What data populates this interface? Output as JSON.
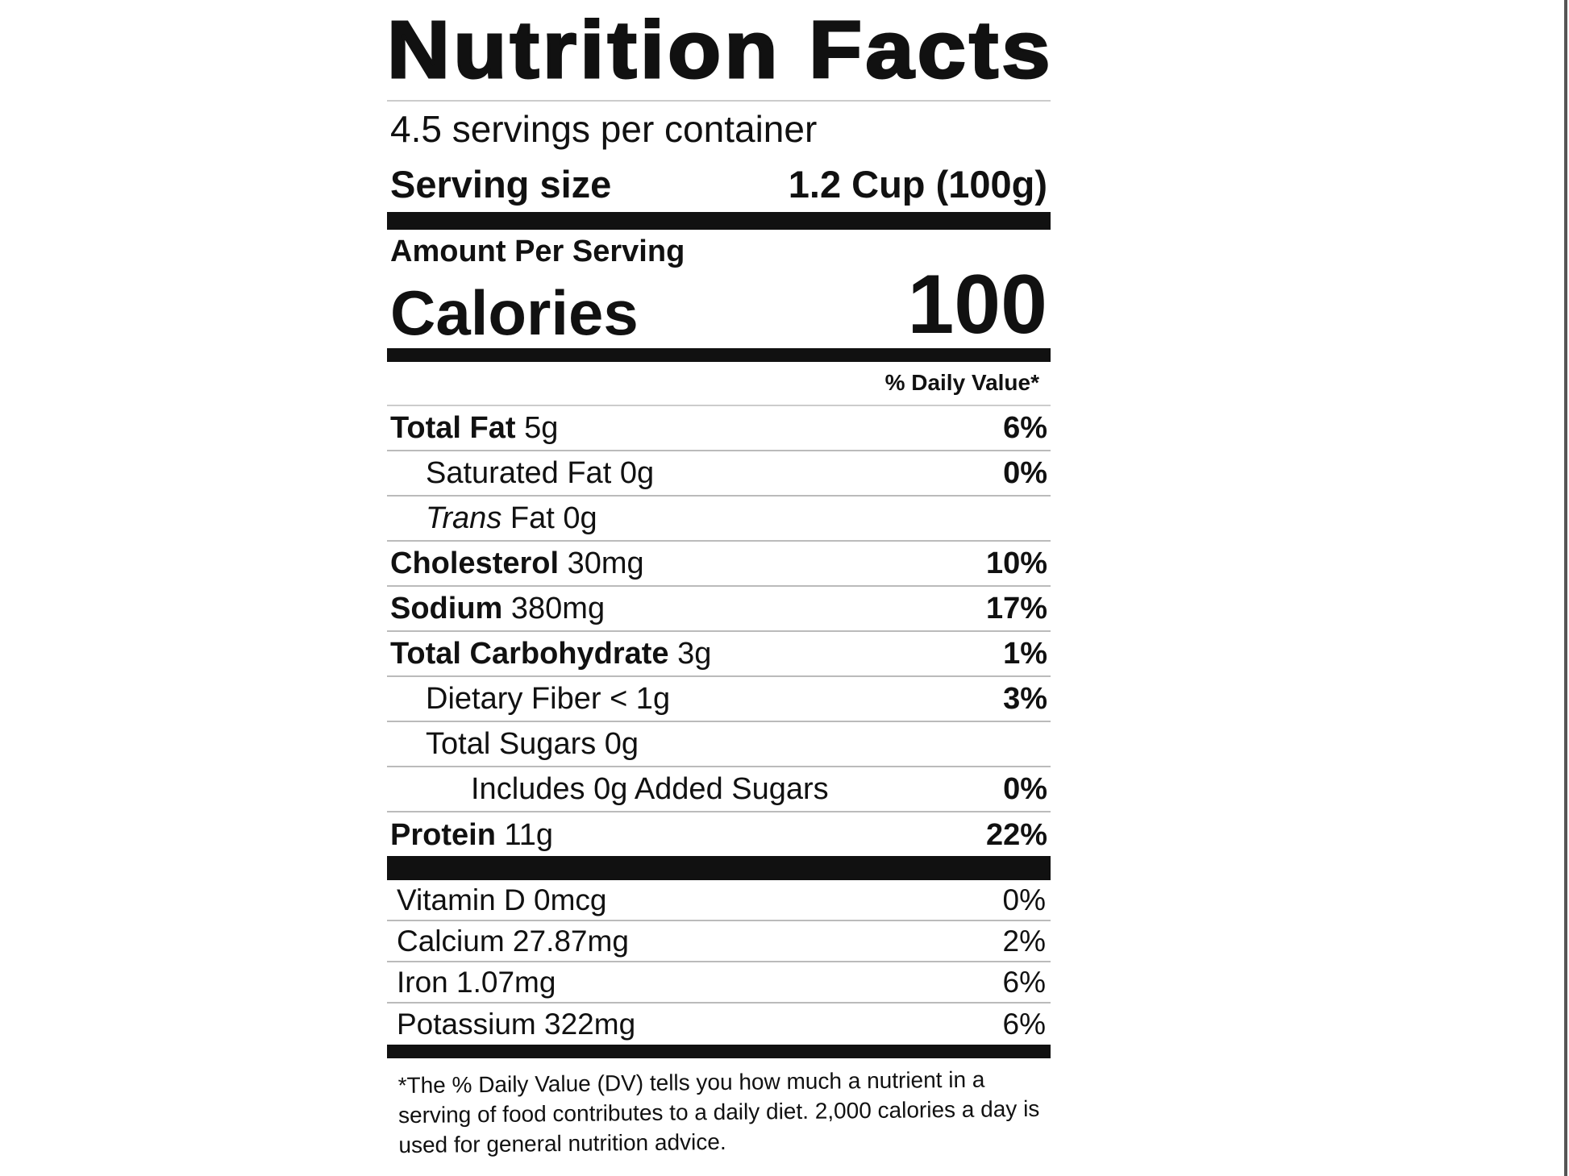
{
  "title": "Nutrition Facts",
  "servings_per_container": "4.5 servings per container",
  "serving_size": {
    "label": "Serving size",
    "value": "1.2 Cup (100g)"
  },
  "amount_per_serving": "Amount Per Serving",
  "calories": {
    "label": "Calories",
    "value": "100"
  },
  "daily_value_header": "% Daily Value*",
  "nutrients": [
    {
      "name": "Total Fat",
      "amount": "5g",
      "dv": "6%",
      "bold": true,
      "indent": 0
    },
    {
      "name": "Saturated Fat",
      "amount": "0g",
      "dv": "0%",
      "bold": false,
      "indent": 1
    },
    {
      "name": "Trans",
      "name_suffix": "Fat",
      "amount": "0g",
      "dv": "",
      "bold": false,
      "indent": 1
    },
    {
      "name": "Cholesterol",
      "amount": "30mg",
      "dv": "10%",
      "bold": true,
      "indent": 0
    },
    {
      "name": "Sodium",
      "amount": "380mg",
      "dv": "17%",
      "bold": true,
      "indent": 0
    },
    {
      "name": "Total Carbohydrate",
      "amount": "3g",
      "dv": "1%",
      "bold": true,
      "indent": 0
    },
    {
      "name": "Dietary Fiber",
      "amount": "< 1g",
      "dv": "3%",
      "bold": false,
      "indent": 1
    },
    {
      "name": "Total Sugars",
      "amount": "0g",
      "dv": "",
      "bold": false,
      "indent": 1
    },
    {
      "name": "Includes 0g Added Sugars",
      "amount": "",
      "dv": "0%",
      "bold": false,
      "indent": 2
    },
    {
      "name": "Protein",
      "amount": "11g",
      "dv": "22%",
      "bold": true,
      "indent": 0
    }
  ],
  "vitamins": [
    {
      "name": "Vitamin D",
      "amount": "0mcg",
      "dv": "0%"
    },
    {
      "name": "Calcium",
      "amount": "27.87mg",
      "dv": "2%"
    },
    {
      "name": "Iron",
      "amount": "1.07mg",
      "dv": "6%"
    },
    {
      "name": "Potassium",
      "amount": "322mg",
      "dv": "6%"
    }
  ],
  "footnote": "*The % Daily Value (DV) tells you how much a nutrient in a serving of food contributes to a daily diet. 2,000 calories a day is used for general nutrition advice."
}
